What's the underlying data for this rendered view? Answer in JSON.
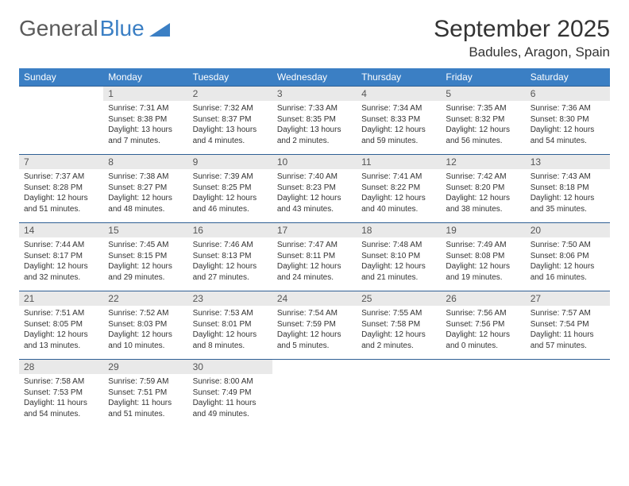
{
  "brand": {
    "part1": "General",
    "part2": "Blue"
  },
  "title": "September 2025",
  "location": "Badules, Aragon, Spain",
  "colors": {
    "header_bg": "#3b7fc4",
    "header_text": "#ffffff",
    "daynum_bg": "#e9e9e9",
    "rule": "#2f5f94",
    "text": "#333333"
  },
  "day_labels": [
    "Sunday",
    "Monday",
    "Tuesday",
    "Wednesday",
    "Thursday",
    "Friday",
    "Saturday"
  ],
  "weeks": [
    {
      "nums": [
        "",
        "1",
        "2",
        "3",
        "4",
        "5",
        "6"
      ],
      "cells": [
        null,
        {
          "sunrise": "Sunrise: 7:31 AM",
          "sunset": "Sunset: 8:38 PM",
          "day1": "Daylight: 13 hours",
          "day2": "and 7 minutes."
        },
        {
          "sunrise": "Sunrise: 7:32 AM",
          "sunset": "Sunset: 8:37 PM",
          "day1": "Daylight: 13 hours",
          "day2": "and 4 minutes."
        },
        {
          "sunrise": "Sunrise: 7:33 AM",
          "sunset": "Sunset: 8:35 PM",
          "day1": "Daylight: 13 hours",
          "day2": "and 2 minutes."
        },
        {
          "sunrise": "Sunrise: 7:34 AM",
          "sunset": "Sunset: 8:33 PM",
          "day1": "Daylight: 12 hours",
          "day2": "and 59 minutes."
        },
        {
          "sunrise": "Sunrise: 7:35 AM",
          "sunset": "Sunset: 8:32 PM",
          "day1": "Daylight: 12 hours",
          "day2": "and 56 minutes."
        },
        {
          "sunrise": "Sunrise: 7:36 AM",
          "sunset": "Sunset: 8:30 PM",
          "day1": "Daylight: 12 hours",
          "day2": "and 54 minutes."
        }
      ]
    },
    {
      "nums": [
        "7",
        "8",
        "9",
        "10",
        "11",
        "12",
        "13"
      ],
      "cells": [
        {
          "sunrise": "Sunrise: 7:37 AM",
          "sunset": "Sunset: 8:28 PM",
          "day1": "Daylight: 12 hours",
          "day2": "and 51 minutes."
        },
        {
          "sunrise": "Sunrise: 7:38 AM",
          "sunset": "Sunset: 8:27 PM",
          "day1": "Daylight: 12 hours",
          "day2": "and 48 minutes."
        },
        {
          "sunrise": "Sunrise: 7:39 AM",
          "sunset": "Sunset: 8:25 PM",
          "day1": "Daylight: 12 hours",
          "day2": "and 46 minutes."
        },
        {
          "sunrise": "Sunrise: 7:40 AM",
          "sunset": "Sunset: 8:23 PM",
          "day1": "Daylight: 12 hours",
          "day2": "and 43 minutes."
        },
        {
          "sunrise": "Sunrise: 7:41 AM",
          "sunset": "Sunset: 8:22 PM",
          "day1": "Daylight: 12 hours",
          "day2": "and 40 minutes."
        },
        {
          "sunrise": "Sunrise: 7:42 AM",
          "sunset": "Sunset: 8:20 PM",
          "day1": "Daylight: 12 hours",
          "day2": "and 38 minutes."
        },
        {
          "sunrise": "Sunrise: 7:43 AM",
          "sunset": "Sunset: 8:18 PM",
          "day1": "Daylight: 12 hours",
          "day2": "and 35 minutes."
        }
      ]
    },
    {
      "nums": [
        "14",
        "15",
        "16",
        "17",
        "18",
        "19",
        "20"
      ],
      "cells": [
        {
          "sunrise": "Sunrise: 7:44 AM",
          "sunset": "Sunset: 8:17 PM",
          "day1": "Daylight: 12 hours",
          "day2": "and 32 minutes."
        },
        {
          "sunrise": "Sunrise: 7:45 AM",
          "sunset": "Sunset: 8:15 PM",
          "day1": "Daylight: 12 hours",
          "day2": "and 29 minutes."
        },
        {
          "sunrise": "Sunrise: 7:46 AM",
          "sunset": "Sunset: 8:13 PM",
          "day1": "Daylight: 12 hours",
          "day2": "and 27 minutes."
        },
        {
          "sunrise": "Sunrise: 7:47 AM",
          "sunset": "Sunset: 8:11 PM",
          "day1": "Daylight: 12 hours",
          "day2": "and 24 minutes."
        },
        {
          "sunrise": "Sunrise: 7:48 AM",
          "sunset": "Sunset: 8:10 PM",
          "day1": "Daylight: 12 hours",
          "day2": "and 21 minutes."
        },
        {
          "sunrise": "Sunrise: 7:49 AM",
          "sunset": "Sunset: 8:08 PM",
          "day1": "Daylight: 12 hours",
          "day2": "and 19 minutes."
        },
        {
          "sunrise": "Sunrise: 7:50 AM",
          "sunset": "Sunset: 8:06 PM",
          "day1": "Daylight: 12 hours",
          "day2": "and 16 minutes."
        }
      ]
    },
    {
      "nums": [
        "21",
        "22",
        "23",
        "24",
        "25",
        "26",
        "27"
      ],
      "cells": [
        {
          "sunrise": "Sunrise: 7:51 AM",
          "sunset": "Sunset: 8:05 PM",
          "day1": "Daylight: 12 hours",
          "day2": "and 13 minutes."
        },
        {
          "sunrise": "Sunrise: 7:52 AM",
          "sunset": "Sunset: 8:03 PM",
          "day1": "Daylight: 12 hours",
          "day2": "and 10 minutes."
        },
        {
          "sunrise": "Sunrise: 7:53 AM",
          "sunset": "Sunset: 8:01 PM",
          "day1": "Daylight: 12 hours",
          "day2": "and 8 minutes."
        },
        {
          "sunrise": "Sunrise: 7:54 AM",
          "sunset": "Sunset: 7:59 PM",
          "day1": "Daylight: 12 hours",
          "day2": "and 5 minutes."
        },
        {
          "sunrise": "Sunrise: 7:55 AM",
          "sunset": "Sunset: 7:58 PM",
          "day1": "Daylight: 12 hours",
          "day2": "and 2 minutes."
        },
        {
          "sunrise": "Sunrise: 7:56 AM",
          "sunset": "Sunset: 7:56 PM",
          "day1": "Daylight: 12 hours",
          "day2": "and 0 minutes."
        },
        {
          "sunrise": "Sunrise: 7:57 AM",
          "sunset": "Sunset: 7:54 PM",
          "day1": "Daylight: 11 hours",
          "day2": "and 57 minutes."
        }
      ]
    },
    {
      "nums": [
        "28",
        "29",
        "30",
        "",
        "",
        "",
        ""
      ],
      "cells": [
        {
          "sunrise": "Sunrise: 7:58 AM",
          "sunset": "Sunset: 7:53 PM",
          "day1": "Daylight: 11 hours",
          "day2": "and 54 minutes."
        },
        {
          "sunrise": "Sunrise: 7:59 AM",
          "sunset": "Sunset: 7:51 PM",
          "day1": "Daylight: 11 hours",
          "day2": "and 51 minutes."
        },
        {
          "sunrise": "Sunrise: 8:00 AM",
          "sunset": "Sunset: 7:49 PM",
          "day1": "Daylight: 11 hours",
          "day2": "and 49 minutes."
        },
        null,
        null,
        null,
        null
      ]
    }
  ]
}
